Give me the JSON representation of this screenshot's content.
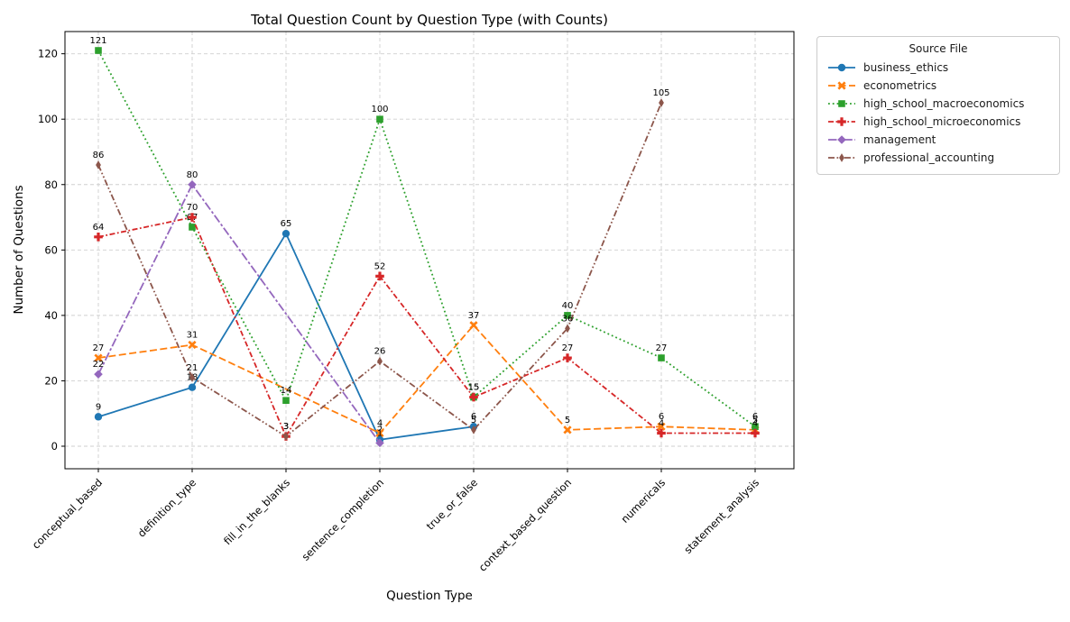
{
  "chart_data": {
    "type": "line",
    "title": "Total Question Count by Question Type (with Counts)",
    "xlabel": "Question Type",
    "ylabel": "Number of Questions",
    "legend_title": "Source File",
    "legend_position": "outside-upper-right",
    "grid": true,
    "grid_style": "dashed-light-gray",
    "x_tick_rotation": 45,
    "categories": [
      "conceptual_based",
      "definition_type",
      "fill_in_the_blanks",
      "sentence_completion",
      "true_or_false",
      "context_based_question",
      "numericals",
      "statement_analysis"
    ],
    "yticks": [
      0,
      20,
      40,
      60,
      80,
      100,
      120
    ],
    "ylim": [
      -7,
      127
    ],
    "point_labels_shown": true,
    "series": [
      {
        "name": "business_ethics",
        "color": "#1f77b4",
        "line_style": "solid",
        "marker": "circle",
        "x": [
          "conceptual_based",
          "definition_type",
          "fill_in_the_blanks",
          "sentence_completion",
          "true_or_false"
        ],
        "y": [
          9,
          18,
          65,
          2,
          6
        ]
      },
      {
        "name": "econometrics",
        "color": "#ff7f0e",
        "line_style": "dashed",
        "marker": "x",
        "x": [
          "conceptual_based",
          "definition_type",
          "sentence_completion",
          "true_or_false",
          "context_based_question",
          "numericals",
          "statement_analysis"
        ],
        "y": [
          27,
          31,
          4,
          37,
          5,
          6,
          5
        ]
      },
      {
        "name": "high_school_macroeconomics",
        "color": "#2ca02c",
        "line_style": "dotted",
        "marker": "square",
        "x": [
          "conceptual_based",
          "definition_type",
          "fill_in_the_blanks",
          "sentence_completion",
          "true_or_false",
          "context_based_question",
          "numericals",
          "statement_analysis"
        ],
        "y": [
          121,
          67,
          14,
          100,
          15,
          40,
          27,
          6
        ]
      },
      {
        "name": "high_school_microeconomics",
        "color": "#d62728",
        "line_style": "dashdot",
        "marker": "plus",
        "x": [
          "conceptual_based",
          "definition_type",
          "fill_in_the_blanks",
          "sentence_completion",
          "true_or_false",
          "context_based_question",
          "numericals",
          "statement_analysis"
        ],
        "y": [
          64,
          70,
          3,
          52,
          15,
          27,
          4,
          4
        ]
      },
      {
        "name": "management",
        "color": "#9467bd",
        "line_style": "longdashdot",
        "marker": "diamond",
        "x": [
          "conceptual_based",
          "definition_type",
          "sentence_completion"
        ],
        "y": [
          22,
          80,
          1
        ]
      },
      {
        "name": "professional_accounting",
        "color": "#8c564b",
        "line_style": "dashdotdot",
        "marker": "thin-diamond",
        "x": [
          "conceptual_based",
          "definition_type",
          "fill_in_the_blanks",
          "sentence_completion",
          "true_or_false",
          "context_based_question",
          "numericals"
        ],
        "y": [
          86,
          21,
          3,
          26,
          5,
          36,
          105
        ]
      }
    ]
  }
}
